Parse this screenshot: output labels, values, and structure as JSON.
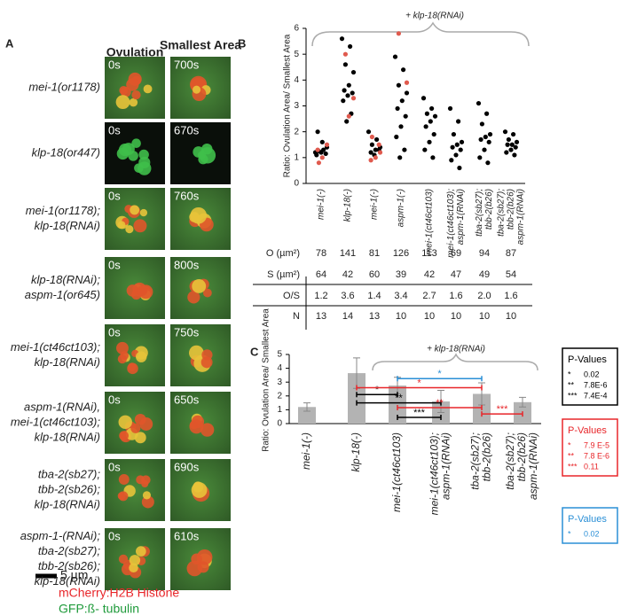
{
  "panel_a": {
    "label": "A",
    "col_headers": [
      "Ovulation",
      "Smallest Area"
    ],
    "rows": [
      {
        "label": [
          "mei-1(or1178)"
        ],
        "times": [
          "0s",
          "700s"
        ]
      },
      {
        "label": [
          "klp-18(or447)"
        ],
        "times": [
          "0s",
          "670s"
        ]
      },
      {
        "label": [
          "mei-1(or1178);",
          "klp-18(RNAi)"
        ],
        "times": [
          "0s",
          "760s"
        ]
      },
      {
        "label": [
          "klp-18(RNAi);",
          "aspm-1(or645)"
        ],
        "times": [
          "0s",
          "800s"
        ]
      },
      {
        "label": [
          "mei-1(ct46ct103);",
          "klp-18(RNAi)"
        ],
        "times": [
          "0s",
          "750s"
        ]
      },
      {
        "label": [
          "aspm-1(RNAi),",
          "mei-1(ct46ct103);",
          "klp-18(RNAi)"
        ],
        "times": [
          "0s",
          "650s"
        ]
      },
      {
        "label": [
          "tba-2(sb27);",
          "tbb-2(sb26);",
          "klp-18(RNAi)"
        ],
        "times": [
          "0s",
          "690s"
        ]
      },
      {
        "label": [
          "aspm-1-(RNAi);",
          "tba-2(sb27);",
          "tbb-2(sb26);",
          "klp-18(RNAi)"
        ],
        "times": [
          "0s",
          "610s"
        ]
      }
    ],
    "scale_bar": "5 µm",
    "legend": [
      {
        "text": "mCherry:H2B Histone",
        "color": "#e8262a"
      },
      {
        "text": "GFP:ß- tubulin",
        "color": "#1e9a3a"
      }
    ]
  },
  "chart_data": [
    {
      "type": "scatter",
      "panel": "B",
      "annotation": "+ klp-18(RNAi)",
      "y_label": "Ratio: Ovulation Area/ Smallest Area",
      "categories": [
        [
          "mei-1(-)"
        ],
        [
          "klp-18(-)"
        ],
        [
          "mei-1(-)"
        ],
        [
          "aspm-1(-)"
        ],
        [
          "mei-1(ct46ct103)"
        ],
        [
          "mei-1(ct46ct103);",
          "aspm-1(RNAi)"
        ],
        [
          "tba-2(sb27);",
          "tbb-2(b26)"
        ],
        [
          "tba-2(sb27);",
          "tbb-2(b26)",
          "aspm-1(RNAi)"
        ]
      ],
      "series": [
        {
          "color": "#000000",
          "values": [
            [
              1.2,
              1.3,
              1.25,
              1.4,
              1.6,
              2.0,
              1.15,
              1.2,
              1.1
            ],
            [
              5.6,
              5.3,
              4.6,
              4.3,
              3.8,
              3.6,
              3.5,
              3.4,
              3.2,
              2.7,
              2.4
            ],
            [
              2.0,
              1.7,
              1.5,
              1.4,
              1.3,
              1.2,
              1.3,
              1.1
            ],
            [
              4.9,
              4.4,
              3.8,
              3.5,
              3.2,
              2.9,
              2.6,
              2.2,
              1.8,
              1.3,
              1.0
            ],
            [
              3.3,
              2.9,
              2.7,
              2.6,
              2.4,
              2.2,
              1.9,
              1.6,
              1.3,
              1.0
            ],
            [
              2.9,
              2.4,
              1.9,
              1.6,
              1.5,
              1.4,
              1.3,
              1.1,
              0.9,
              0.6
            ],
            [
              3.1,
              2.7,
              2.3,
              1.9,
              1.8,
              1.7,
              1.6,
              1.3,
              1.0,
              0.8
            ],
            [
              2.0,
              1.9,
              1.7,
              1.6,
              1.5,
              1.5,
              1.4,
              1.3,
              1.2,
              1.1
            ]
          ]
        },
        {
          "color": "#e05a4e",
          "values": [
            [
              0.8,
              1.5,
              1.0,
              1.3
            ],
            [
              5.0,
              3.3,
              2.6
            ],
            [
              1.8,
              1.2,
              1.0,
              0.9,
              1.5
            ],
            [
              5.8,
              3.9
            ],
            [],
            [],
            [],
            []
          ]
        }
      ],
      "ylim": [
        0,
        6
      ],
      "yticks": [
        0,
        1,
        2,
        3,
        4,
        5,
        6
      ]
    },
    {
      "type": "bar",
      "panel": "C",
      "annotation": "+ klp-18(RNAi)",
      "y_label": "Ratio: Ovulation Area/ Smallest Area",
      "categories": [
        [
          "mei-1(-)"
        ],
        [
          "klp-18(-)"
        ],
        [
          "mei-1(ct46ct103)"
        ],
        [
          "mei-1(ct46ct103);",
          "aspm-1(RNAi)"
        ],
        [
          "tba-2(sb27);",
          "tbb-2(b26)"
        ],
        [
          "tba-2(sb27);",
          "tbb-2(b26)",
          "aspm-1(RNAi)"
        ]
      ],
      "values": [
        1.2,
        3.65,
        2.75,
        1.6,
        2.15,
        1.55
      ],
      "errors": [
        0.3,
        1.1,
        0.6,
        0.8,
        0.8,
        0.35
      ],
      "color": "#b3b3b3",
      "ylim": [
        0,
        5
      ],
      "yticks": [
        0,
        1,
        2,
        3,
        4,
        5
      ],
      "comparisons": [
        {
          "from": 1,
          "to": 2,
          "level": 2.1,
          "label": "*",
          "color": "#000000"
        },
        {
          "from": 1,
          "to": 3,
          "level": 1.5,
          "label": "**",
          "color": "#000000"
        },
        {
          "from": 2,
          "to": 3,
          "level": 0.45,
          "label": "***",
          "color": "#000000"
        },
        {
          "from": 1,
          "to": 4,
          "level": 2.6,
          "label": "*",
          "color": "#e8262a"
        },
        {
          "from": 2,
          "to": 4,
          "level": 1.15,
          "label": "**",
          "color": "#e8262a"
        },
        {
          "from": 4,
          "to": 5,
          "level": 0.7,
          "label": "***",
          "color": "#e8262a"
        },
        {
          "from": 2,
          "to": 4,
          "level": 3.25,
          "label": "*",
          "color": "#2a8fd6"
        }
      ]
    }
  ],
  "table": {
    "rows": [
      {
        "label": "O (µm²)",
        "values": [
          "78",
          "141",
          "81",
          "126",
          "113",
          "69",
          "94",
          "87"
        ]
      },
      {
        "label": "S (µm²)",
        "values": [
          "64",
          "42",
          "60",
          "39",
          "42",
          "47",
          "49",
          "54"
        ]
      },
      {
        "label": "O/S",
        "values": [
          "1.2",
          "3.6",
          "1.4",
          "3.4",
          "2.7",
          "1.6",
          "2.0",
          "1.6"
        ]
      },
      {
        "label": "N",
        "values": [
          "13",
          "14",
          "13",
          "10",
          "10",
          "10",
          "10",
          "10"
        ]
      }
    ]
  },
  "pvalue_boxes": [
    {
      "title": "P-Values",
      "color": "#000000",
      "rows": [
        [
          "*",
          "0.02"
        ],
        [
          "**",
          "7.8E-6"
        ],
        [
          "***",
          "7.4E-4"
        ]
      ]
    },
    {
      "title": "P-Values",
      "color": "#e8262a",
      "rows": [
        [
          "*",
          "7.9 E-5"
        ],
        [
          "**",
          "7.8 E-6"
        ],
        [
          "***",
          "0.11"
        ]
      ]
    },
    {
      "title": "P-Values",
      "color": "#2a8fd6",
      "rows": [
        [
          "*",
          "0.02"
        ]
      ]
    }
  ]
}
